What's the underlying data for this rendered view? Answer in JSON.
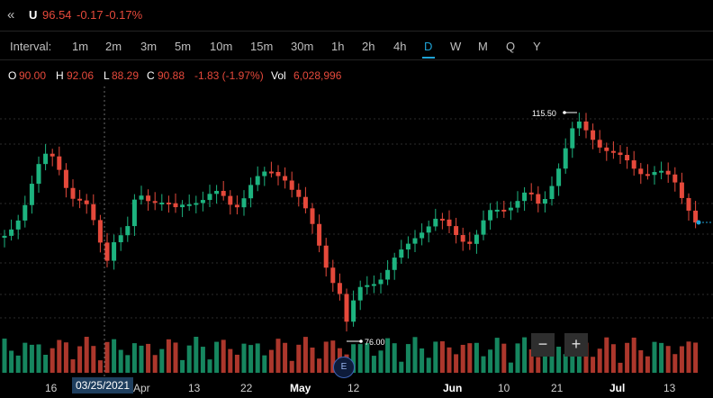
{
  "header": {
    "back_icon": "double-chevron-left-icon",
    "symbol": "U",
    "price": "96.54",
    "change": "-0.17",
    "change_pct": "-0.17%"
  },
  "interval": {
    "label": "Interval:",
    "options": [
      "1m",
      "2m",
      "3m",
      "5m",
      "10m",
      "15m",
      "30m",
      "1h",
      "2h",
      "4h",
      "D",
      "W",
      "M",
      "Q",
      "Y"
    ],
    "active": "D"
  },
  "ohlc": {
    "o_label": "O",
    "o": "90.00",
    "h_label": "H",
    "h": "92.06",
    "l_label": "L",
    "l": "88.29",
    "c_label": "C",
    "c": "90.88",
    "chg": "-1.83 (-1.97%)",
    "vol_label": "Vol",
    "vol": "6,028,996"
  },
  "chart": {
    "annotations": {
      "high": "115.50",
      "low": "76.00"
    },
    "crosshair_date": "03/25/2021",
    "x_labels": [
      "16",
      "Apr",
      "13",
      "22",
      "May",
      "12",
      "Jun",
      "10",
      "21",
      "Jul",
      "13"
    ],
    "earnings_badge": "E",
    "zoom_out_label": "−",
    "zoom_in_label": "+",
    "colors": {
      "up": "#1db37f",
      "down": "#e5493b",
      "background": "#000000",
      "accent": "#1fa3d6"
    }
  }
}
